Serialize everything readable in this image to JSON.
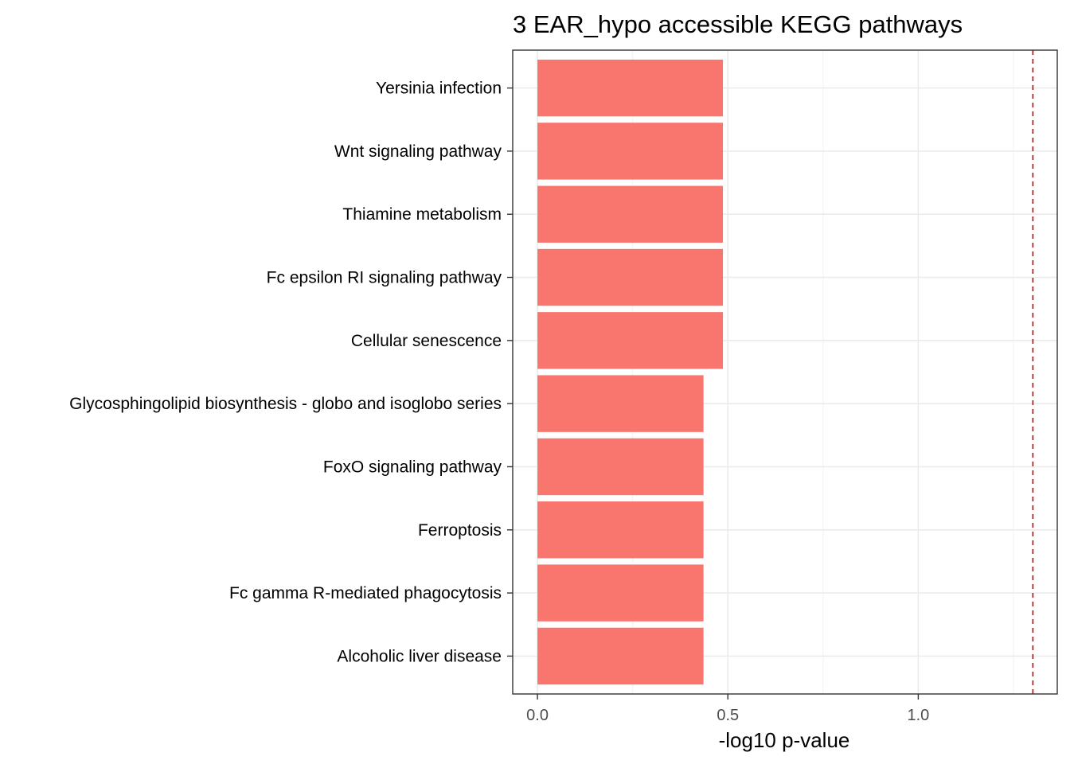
{
  "chart_data": {
    "type": "bar",
    "orientation": "horizontal",
    "title": "3 EAR_hypo accessible KEGG pathways",
    "xlabel": "-log10 p-value",
    "ylabel": "",
    "categories": [
      "Yersinia infection",
      "Wnt signaling pathway",
      "Thiamine metabolism",
      "Fc epsilon RI signaling pathway",
      "Cellular senescence",
      "Glycosphingolipid biosynthesis - globo and isoglobo series",
      "FoxO signaling pathway",
      "Ferroptosis",
      "Fc gamma R-mediated phagocytosis",
      "Alcoholic liver disease"
    ],
    "values": [
      0.487,
      0.487,
      0.487,
      0.487,
      0.487,
      0.436,
      0.436,
      0.436,
      0.436,
      0.436
    ],
    "threshold": 1.301,
    "xlim": [
      -0.065,
      1.365
    ],
    "xticks": [
      0.0,
      0.5,
      1.0
    ],
    "xtick_labels": [
      "0.0",
      "0.5",
      "1.0"
    ],
    "grid": true,
    "colors": {
      "bar": "#F8766D",
      "threshold_line": "#CC0000",
      "grid_major": "#EBEBEB",
      "grid_minor": "#F3F3F3",
      "panel_border": "#333333"
    }
  }
}
